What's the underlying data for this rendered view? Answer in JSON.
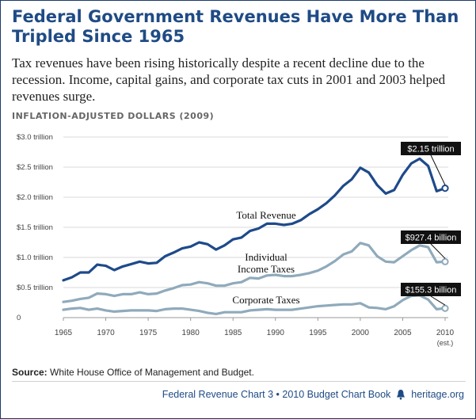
{
  "title": "Federal Government Revenues Have More Than Tripled Since 1965",
  "subtitle": "Tax revenues have been rising historically despite a recent decline due to the recession. Income, capital gains, and corporate tax cuts in 2001 and 2003 helped revenues surge.",
  "units_label": "INFLATION-ADJUSTED DOLLARS (2009)",
  "source_label": "Source:",
  "source_text": "White House Office of Management and Budget.",
  "footer": {
    "chart_ref": "Federal Revenue Chart 3 • 2010 Budget Chart Book",
    "site": "heritage.org",
    "bell_icon": "liberty-bell-icon"
  },
  "colors": {
    "title": "#1f4b85",
    "total": "#1e4a8a",
    "individual": "#8faabb",
    "corporate": "#8faabb",
    "callout_bg": "#111111"
  },
  "chart_data": {
    "type": "line",
    "xlim": [
      1965,
      2010
    ],
    "ylim": [
      0,
      3.0
    ],
    "x_ticks": [
      "1965",
      "1970",
      "1975",
      "1980",
      "1985",
      "1990",
      "1995",
      "2000",
      "2005",
      "2010"
    ],
    "x_note": "(est.)",
    "y_ticks": [
      "0",
      "$0.5 trillion",
      "$1.0 trillion",
      "$1.5 trillion",
      "$2.0 trillion",
      "$2.5 trillion",
      "$3.0 trillion"
    ],
    "x": [
      1965,
      1966,
      1967,
      1968,
      1969,
      1970,
      1971,
      1972,
      1973,
      1974,
      1975,
      1976,
      1977,
      1978,
      1979,
      1980,
      1981,
      1982,
      1983,
      1984,
      1985,
      1986,
      1987,
      1988,
      1989,
      1990,
      1991,
      1992,
      1993,
      1994,
      1995,
      1996,
      1997,
      1998,
      1999,
      2000,
      2001,
      2002,
      2003,
      2004,
      2005,
      2006,
      2007,
      2008,
      2009,
      2010
    ],
    "series": [
      {
        "name": "Total Revenue",
        "values": [
          0.62,
          0.67,
          0.75,
          0.75,
          0.88,
          0.86,
          0.79,
          0.85,
          0.89,
          0.93,
          0.9,
          0.91,
          1.02,
          1.08,
          1.15,
          1.18,
          1.25,
          1.22,
          1.13,
          1.2,
          1.3,
          1.33,
          1.44,
          1.48,
          1.56,
          1.56,
          1.54,
          1.56,
          1.62,
          1.72,
          1.8,
          1.9,
          2.03,
          2.19,
          2.3,
          2.49,
          2.41,
          2.2,
          2.06,
          2.12,
          2.37,
          2.56,
          2.64,
          2.52,
          2.1,
          2.15
        ],
        "callout": "$2.15 trillion"
      },
      {
        "name": "Individual Income Taxes",
        "values": [
          0.26,
          0.28,
          0.31,
          0.33,
          0.4,
          0.39,
          0.36,
          0.39,
          0.39,
          0.42,
          0.39,
          0.4,
          0.45,
          0.49,
          0.54,
          0.55,
          0.59,
          0.57,
          0.53,
          0.53,
          0.57,
          0.59,
          0.66,
          0.65,
          0.7,
          0.71,
          0.69,
          0.69,
          0.71,
          0.74,
          0.78,
          0.85,
          0.94,
          1.05,
          1.1,
          1.24,
          1.2,
          1.02,
          0.93,
          0.92,
          1.02,
          1.12,
          1.2,
          1.17,
          0.92,
          0.93
        ],
        "callout": "$927.4 billion"
      },
      {
        "name": "Corporate Taxes",
        "values": [
          0.13,
          0.15,
          0.16,
          0.13,
          0.15,
          0.12,
          0.1,
          0.11,
          0.12,
          0.12,
          0.12,
          0.11,
          0.14,
          0.15,
          0.15,
          0.13,
          0.11,
          0.08,
          0.06,
          0.09,
          0.09,
          0.09,
          0.12,
          0.13,
          0.14,
          0.13,
          0.13,
          0.13,
          0.15,
          0.17,
          0.19,
          0.2,
          0.21,
          0.22,
          0.22,
          0.24,
          0.17,
          0.16,
          0.14,
          0.19,
          0.29,
          0.36,
          0.37,
          0.3,
          0.14,
          0.155
        ],
        "callout": "$155.3 billion"
      }
    ],
    "series_labels": {
      "total": "Total Revenue",
      "individual_1": "Individual",
      "individual_2": "Income Taxes",
      "corporate": "Corporate Taxes"
    },
    "grid": true
  }
}
